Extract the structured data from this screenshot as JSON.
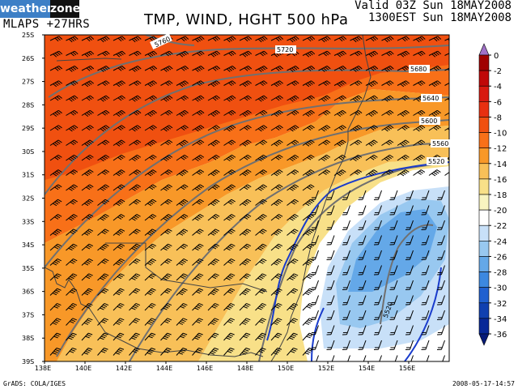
{
  "header": {
    "logo_left": "weather",
    "logo_right": "zone",
    "model": "MLAPS +27HRS",
    "title": "TMP, WIND, HGHT 500 hPa",
    "valid_line1": "Valid 03Z Sun 18MAY2008",
    "valid_line2": "1300EST Sun 18MAY2008"
  },
  "footer": {
    "credit": "GrADS: COLA/IGES",
    "timestamp": "2008-05-17-14:57"
  },
  "map": {
    "lat_labels": [
      "25S",
      "26S",
      "27S",
      "28S",
      "29S",
      "30S",
      "31S",
      "32S",
      "33S",
      "34S",
      "35S",
      "36S",
      "37S",
      "38S",
      "39S"
    ],
    "lon_labels": [
      "138E",
      "140E",
      "142E",
      "144E",
      "146E",
      "148E",
      "150E",
      "152E",
      "154E",
      "156E"
    ],
    "contour_labels": [
      "5760",
      "5720",
      "5680",
      "5640",
      "5600",
      "5560",
      "5520",
      "5520"
    ]
  },
  "legend": {
    "levels": [
      "0",
      "-2",
      "-4",
      "-6",
      "-8",
      "-10",
      "-12",
      "-14",
      "-16",
      "-18",
      "-20",
      "-22",
      "-24",
      "-26",
      "-28",
      "-30",
      "-32",
      "-34",
      "-36"
    ],
    "colors": [
      "#a070c8",
      "#a00000",
      "#c00808",
      "#d81a10",
      "#e83010",
      "#f05010",
      "#f87018",
      "#f89828",
      "#f8c058",
      "#f8e088",
      "#f8f4c0",
      "#ffffff",
      "#c8e0f8",
      "#98c8f0",
      "#64a8e8",
      "#3c88e0",
      "#2060d0",
      "#1040b0",
      "#082898",
      "#061a78"
    ]
  }
}
